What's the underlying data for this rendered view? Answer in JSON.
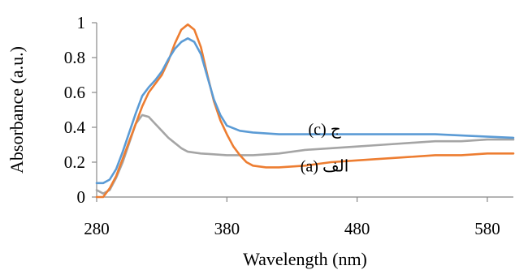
{
  "chart_data": {
    "type": "line",
    "xlabel": "Wavelength (nm)",
    "ylabel": "Absorbance (a.u.)",
    "xlim": [
      280,
      600
    ],
    "ylim": [
      0,
      1
    ],
    "x_ticks": [
      280,
      380,
      480,
      580
    ],
    "y_ticks": [
      0,
      0.2,
      0.4,
      0.6,
      0.8,
      1
    ],
    "y_tick_labels": [
      "0",
      "0.2",
      "0.4",
      "0.6",
      "0.8",
      "1"
    ],
    "x_tick_labels": [
      "280",
      "380",
      "480",
      "580"
    ],
    "grid": false,
    "legend": "none",
    "series": [
      {
        "color": "#5b9bd5",
        "points": [
          [
            280,
            0.08
          ],
          [
            285,
            0.08
          ],
          [
            290,
            0.1
          ],
          [
            295,
            0.16
          ],
          [
            300,
            0.26
          ],
          [
            305,
            0.37
          ],
          [
            310,
            0.48
          ],
          [
            315,
            0.58
          ],
          [
            320,
            0.63
          ],
          [
            325,
            0.67
          ],
          [
            330,
            0.72
          ],
          [
            335,
            0.79
          ],
          [
            340,
            0.85
          ],
          [
            345,
            0.89
          ],
          [
            350,
            0.91
          ],
          [
            355,
            0.89
          ],
          [
            360,
            0.82
          ],
          [
            365,
            0.69
          ],
          [
            370,
            0.56
          ],
          [
            375,
            0.47
          ],
          [
            380,
            0.41
          ],
          [
            390,
            0.38
          ],
          [
            400,
            0.37
          ],
          [
            420,
            0.36
          ],
          [
            450,
            0.36
          ],
          [
            480,
            0.36
          ],
          [
            510,
            0.36
          ],
          [
            540,
            0.36
          ],
          [
            570,
            0.35
          ],
          [
            600,
            0.34
          ]
        ]
      },
      {
        "color": "#ed7d31",
        "points": [
          [
            280,
            0.0
          ],
          [
            285,
            0.0
          ],
          [
            290,
            0.05
          ],
          [
            295,
            0.12
          ],
          [
            300,
            0.22
          ],
          [
            305,
            0.32
          ],
          [
            310,
            0.42
          ],
          [
            315,
            0.52
          ],
          [
            320,
            0.6
          ],
          [
            325,
            0.65
          ],
          [
            330,
            0.7
          ],
          [
            335,
            0.78
          ],
          [
            340,
            0.88
          ],
          [
            345,
            0.96
          ],
          [
            350,
            0.99
          ],
          [
            355,
            0.96
          ],
          [
            360,
            0.86
          ],
          [
            365,
            0.7
          ],
          [
            370,
            0.55
          ],
          [
            375,
            0.44
          ],
          [
            380,
            0.36
          ],
          [
            385,
            0.29
          ],
          [
            390,
            0.24
          ],
          [
            395,
            0.2
          ],
          [
            400,
            0.18
          ],
          [
            410,
            0.17
          ],
          [
            420,
            0.17
          ],
          [
            440,
            0.18
          ],
          [
            460,
            0.2
          ],
          [
            480,
            0.21
          ],
          [
            500,
            0.22
          ],
          [
            520,
            0.23
          ],
          [
            540,
            0.24
          ],
          [
            560,
            0.24
          ],
          [
            580,
            0.25
          ],
          [
            600,
            0.25
          ]
        ]
      },
      {
        "color": "#a5a5a5",
        "points": [
          [
            280,
            0.04
          ],
          [
            285,
            0.02
          ],
          [
            290,
            0.04
          ],
          [
            295,
            0.11
          ],
          [
            300,
            0.2
          ],
          [
            305,
            0.31
          ],
          [
            310,
            0.42
          ],
          [
            315,
            0.47
          ],
          [
            320,
            0.46
          ],
          [
            325,
            0.42
          ],
          [
            330,
            0.38
          ],
          [
            335,
            0.34
          ],
          [
            340,
            0.31
          ],
          [
            345,
            0.28
          ],
          [
            350,
            0.26
          ],
          [
            360,
            0.25
          ],
          [
            380,
            0.24
          ],
          [
            400,
            0.24
          ],
          [
            420,
            0.25
          ],
          [
            440,
            0.27
          ],
          [
            460,
            0.28
          ],
          [
            480,
            0.29
          ],
          [
            500,
            0.3
          ],
          [
            520,
            0.31
          ],
          [
            540,
            0.32
          ],
          [
            560,
            0.32
          ],
          [
            580,
            0.33
          ],
          [
            600,
            0.33
          ]
        ]
      }
    ],
    "annotations": [
      {
        "text": "(c) ج",
        "x": 455,
        "y": 0.39
      },
      {
        "text": "(a) الف",
        "x": 455,
        "y": 0.18
      }
    ]
  }
}
